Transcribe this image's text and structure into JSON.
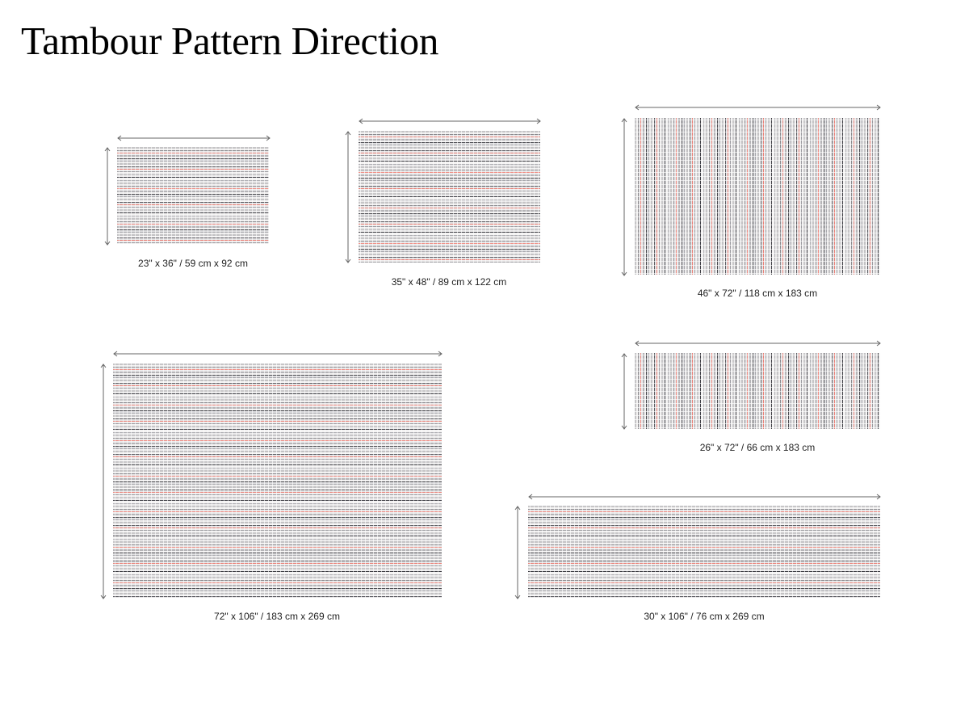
{
  "title": "Tambour Pattern Direction",
  "rugs": [
    {
      "label": "23\" x 36\" / 59 cm x 92 cm"
    },
    {
      "label": "35\" x 48\" / 89 cm x 122 cm"
    },
    {
      "label": "46\" x 72\" / 118 cm x 183 cm"
    },
    {
      "label": "72\" x 106\" / 183 cm x 269 cm"
    },
    {
      "label": "26\" x 72\" / 66 cm x 183 cm"
    },
    {
      "label": "30\" x 106\" / 76 cm x 269 cm"
    }
  ]
}
